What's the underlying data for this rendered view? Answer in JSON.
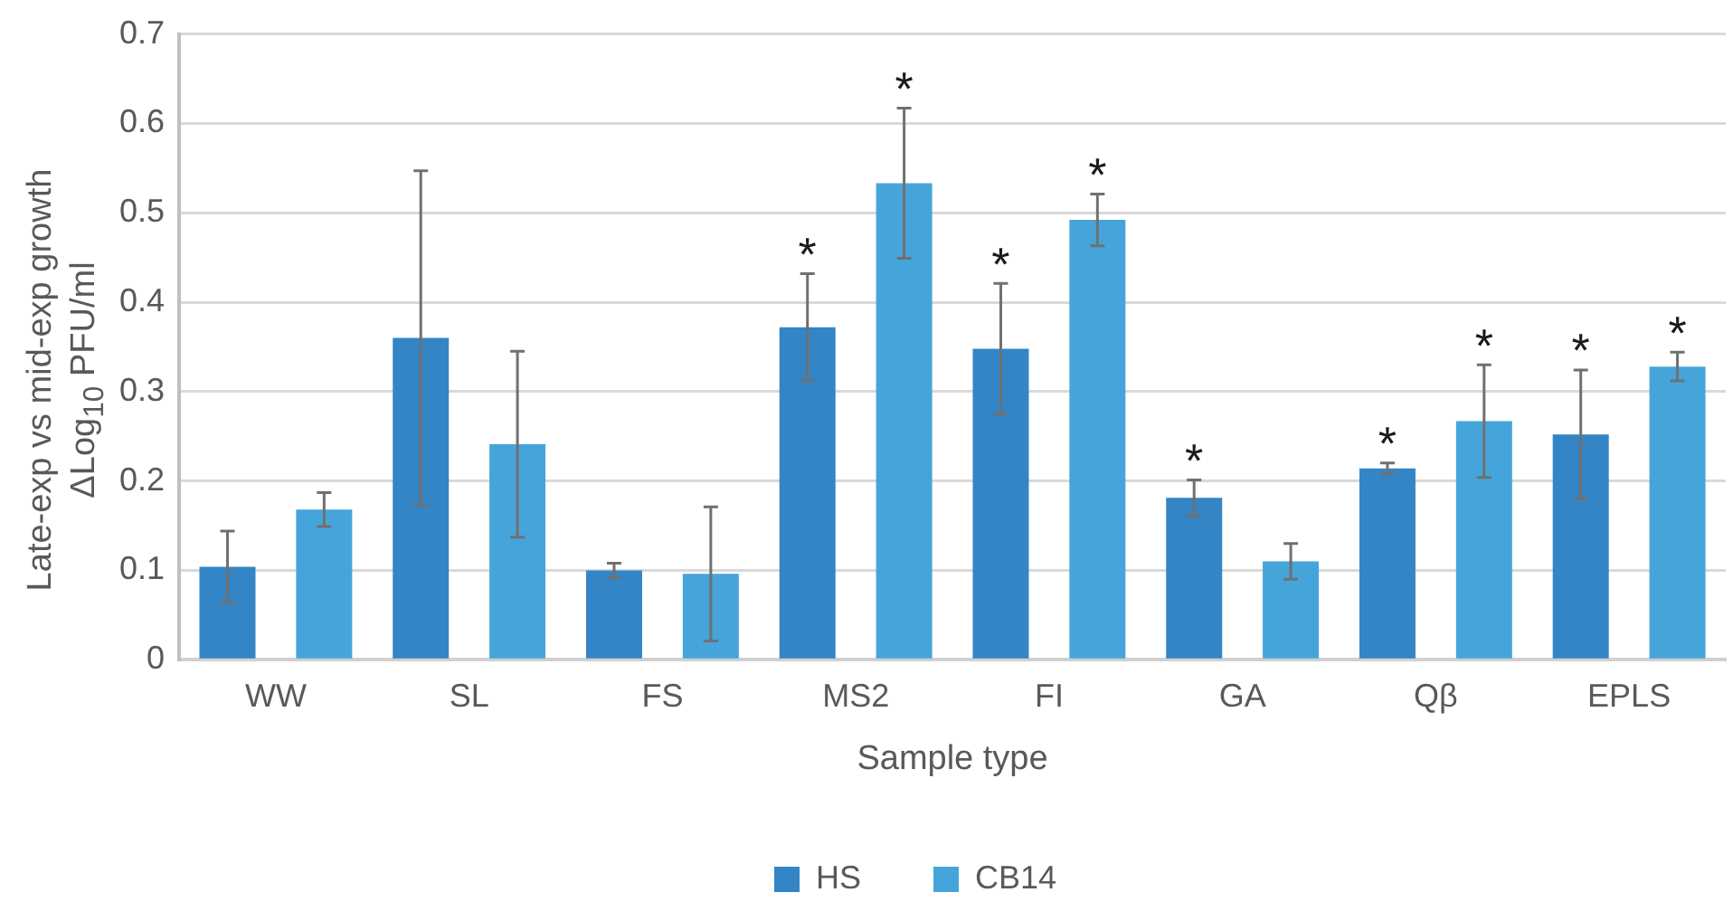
{
  "chart_data": {
    "type": "bar",
    "xlabel": "Sample type",
    "ylabel": "Late-exp vs mid-exp growth\nΔLog$_{10}$ PFU/ml",
    "categories": [
      "WW",
      "SL",
      "FS",
      "MS2",
      "FI",
      "GA",
      "Qβ",
      "EPLS"
    ],
    "series": [
      {
        "name": "HS",
        "color": "#3385c6",
        "values": [
          0.104,
          0.36,
          0.1,
          0.372,
          0.348,
          0.181,
          0.214,
          0.252
        ],
        "errors": [
          0.04,
          0.187,
          0.008,
          0.06,
          0.073,
          0.02,
          0.006,
          0.072
        ],
        "value_labels": [
          null,
          null,
          null,
          "*",
          "*",
          "*",
          "*",
          "*"
        ]
      },
      {
        "name": "CB14",
        "color": "#45a5da",
        "values": [
          0.168,
          0.241,
          0.096,
          0.533,
          0.492,
          0.11,
          0.267,
          0.328
        ],
        "errors": [
          0.019,
          0.104,
          0.075,
          0.084,
          0.029,
          0.02,
          0.063,
          0.016
        ],
        "value_labels": [
          null,
          null,
          null,
          "*",
          "*",
          null,
          "*",
          "*"
        ]
      }
    ],
    "ylim": [
      0,
      0.7
    ],
    "yticks": [
      0,
      0.1,
      0.2,
      0.3,
      0.4,
      0.5,
      0.6,
      0.7
    ],
    "grid": "y",
    "legend": "bottom"
  }
}
